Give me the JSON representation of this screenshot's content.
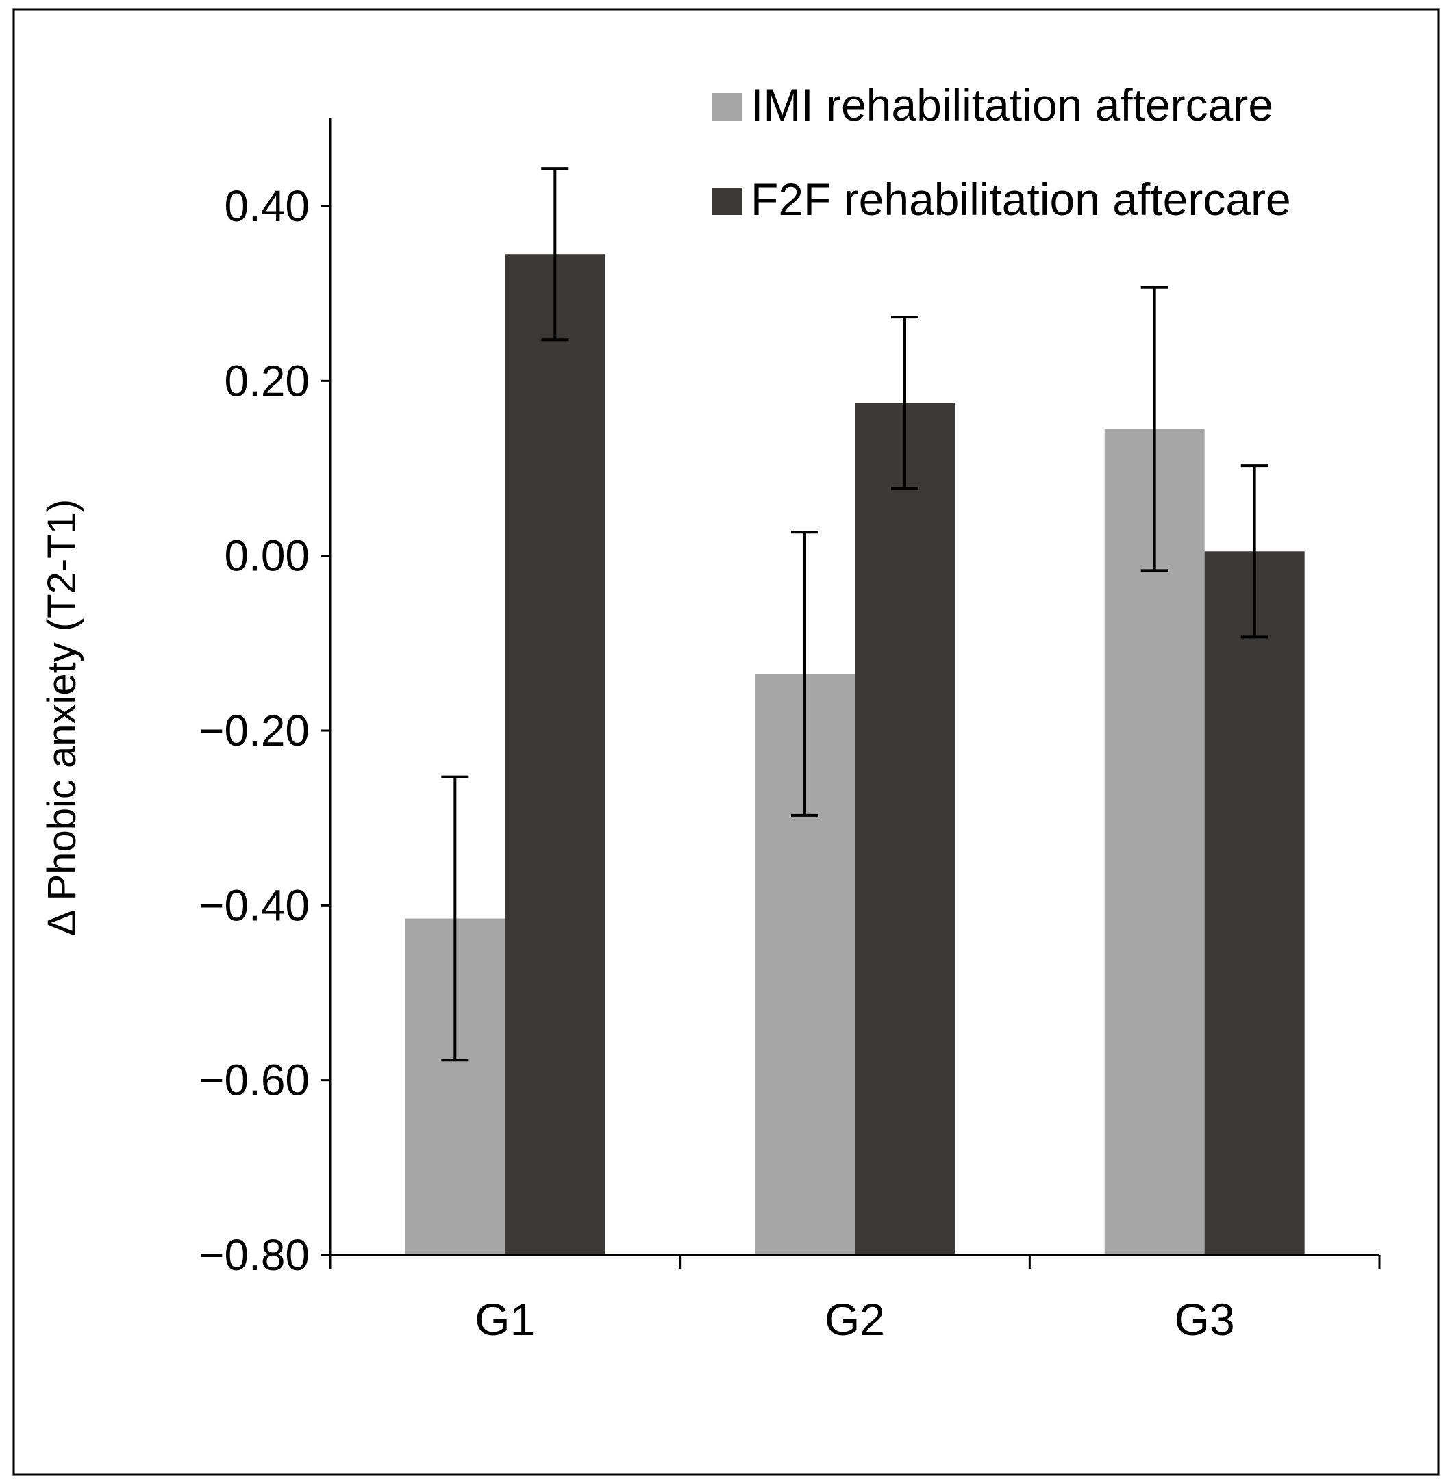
{
  "chart_data": {
    "type": "bar",
    "title": "",
    "xlabel": "",
    "ylabel": "Δ Phobic anxiety (T2-T1)",
    "categories": [
      "G1",
      "G2",
      "G3"
    ],
    "series": [
      {
        "name": "IMI rehabilitation aftercare",
        "color": "#a6a6a6",
        "values": [
          -0.415,
          -0.135,
          0.145
        ],
        "error_low": [
          -0.577,
          -0.297,
          -0.017
        ],
        "error_high": [
          -0.253,
          0.027,
          0.307
        ]
      },
      {
        "name": "F2F rehabilitation aftercare",
        "color": "#3a3937",
        "values": [
          0.345,
          0.175,
          0.005
        ],
        "error_low": [
          0.247,
          0.077,
          -0.093
        ],
        "error_high": [
          0.443,
          0.273,
          0.103
        ]
      }
    ],
    "ylim": [
      -0.8,
      0.5
    ],
    "yticks": [
      -0.8,
      -0.6,
      -0.4,
      -0.2,
      0.0,
      0.2,
      0.4
    ],
    "ytick_labels": [
      "−0.80",
      "−0.60",
      "−0.40",
      "−0.20",
      "0.00",
      "0.20",
      "0.40"
    ],
    "grid": false,
    "legend_position": "top-right",
    "frame_color": "#000000"
  }
}
